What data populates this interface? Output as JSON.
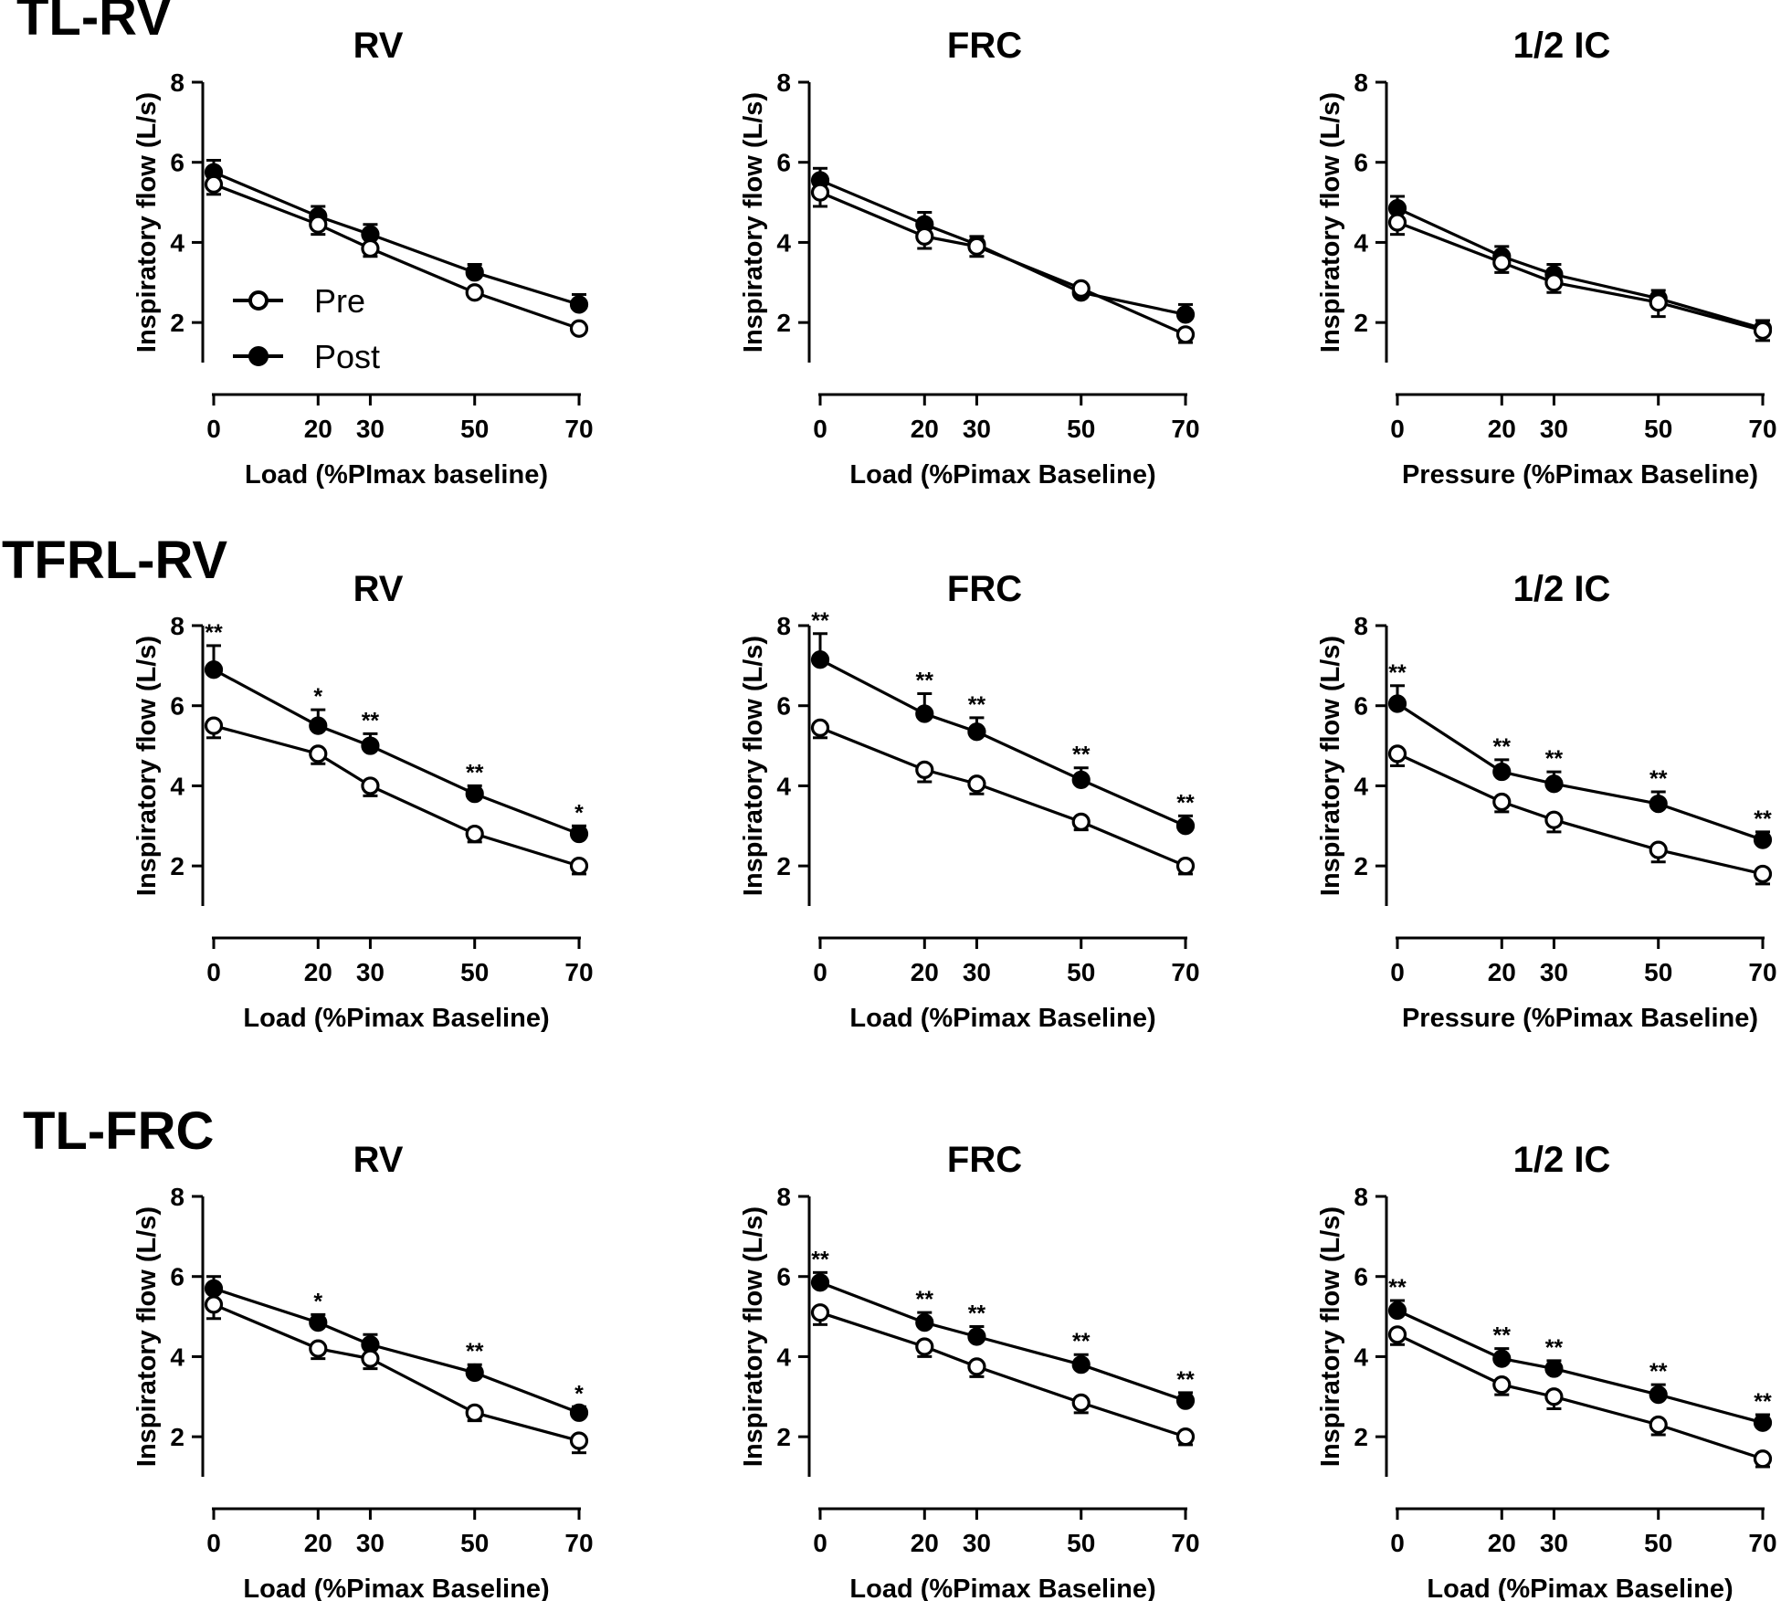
{
  "legend": {
    "pre_label": "Pre",
    "post_label": "Post"
  },
  "chart_data": [
    {
      "row_label": "TL-RV",
      "type": "line",
      "title": "RV",
      "xlabel": "Load (%PImax baseline)",
      "ylabel": "Inspiratory flow (L/s)",
      "x": [
        0,
        20,
        30,
        50,
        70
      ],
      "xticks": [
        "0",
        "20",
        "30",
        "50",
        "70"
      ],
      "ylim": [
        1,
        8
      ],
      "yticks": [
        "2",
        "4",
        "6",
        "8"
      ],
      "series": [
        {
          "name": "Pre",
          "values": [
            5.45,
            4.45,
            3.85,
            2.75,
            1.85
          ],
          "err": [
            0.25,
            0.25,
            0.2,
            0.1,
            0.1
          ]
        },
        {
          "name": "Post",
          "values": [
            5.75,
            4.65,
            4.2,
            3.25,
            2.45
          ],
          "err": [
            0.3,
            0.25,
            0.25,
            0.2,
            0.25
          ],
          "sig": [
            "",
            "",
            "",
            "",
            ""
          ]
        }
      ]
    },
    {
      "row_label": "",
      "type": "line",
      "title": "FRC",
      "xlabel": "Load (%Pimax Baseline)",
      "ylabel": "Inspiratory flow (L/s)",
      "x": [
        0,
        20,
        30,
        50,
        70
      ],
      "xticks": [
        "0",
        "20",
        "30",
        "50",
        "70"
      ],
      "ylim": [
        1,
        8
      ],
      "yticks": [
        "2",
        "4",
        "6",
        "8"
      ],
      "series": [
        {
          "name": "Pre",
          "values": [
            5.25,
            4.15,
            3.9,
            2.85,
            1.7
          ],
          "err": [
            0.35,
            0.3,
            0.25,
            0.15,
            0.2
          ]
        },
        {
          "name": "Post",
          "values": [
            5.55,
            4.45,
            3.95,
            2.75,
            2.2
          ],
          "err": [
            0.3,
            0.3,
            0.2,
            0.15,
            0.25
          ],
          "sig": [
            "",
            "",
            "",
            "",
            ""
          ]
        }
      ]
    },
    {
      "row_label": "",
      "type": "line",
      "title": "1/2 IC",
      "xlabel": "Pressure (%Pimax Baseline)",
      "ylabel": "Inspiratory flow (L/s)",
      "x": [
        0,
        20,
        30,
        50,
        70
      ],
      "xticks": [
        "0",
        "20",
        "30",
        "50",
        "70"
      ],
      "ylim": [
        1,
        8
      ],
      "yticks": [
        "2",
        "4",
        "6",
        "8"
      ],
      "series": [
        {
          "name": "Pre",
          "values": [
            4.5,
            3.5,
            3.0,
            2.5,
            1.8
          ],
          "err": [
            0.3,
            0.25,
            0.25,
            0.35,
            0.25
          ]
        },
        {
          "name": "Post",
          "values": [
            4.85,
            3.65,
            3.2,
            2.6,
            1.85
          ],
          "err": [
            0.3,
            0.25,
            0.25,
            0.2,
            0.2
          ],
          "sig": [
            "",
            "",
            "",
            "",
            ""
          ]
        }
      ]
    },
    {
      "row_label": "TFRL-RV",
      "type": "line",
      "title": "RV",
      "xlabel": "Load (%Pimax Baseline)",
      "ylabel": "Inspiratory flow (L/s)",
      "x": [
        0,
        20,
        30,
        50,
        70
      ],
      "xticks": [
        "0",
        "20",
        "30",
        "50",
        "70"
      ],
      "ylim": [
        1,
        8
      ],
      "yticks": [
        "2",
        "4",
        "6",
        "8"
      ],
      "series": [
        {
          "name": "Pre",
          "values": [
            5.5,
            4.8,
            4.0,
            2.8,
            2.0
          ],
          "err": [
            0.3,
            0.25,
            0.25,
            0.2,
            0.2
          ]
        },
        {
          "name": "Post",
          "values": [
            6.9,
            5.5,
            5.0,
            3.8,
            2.8
          ],
          "err": [
            0.6,
            0.4,
            0.3,
            0.2,
            0.2
          ],
          "sig": [
            "**",
            "*",
            "**",
            "**",
            "*"
          ]
        }
      ]
    },
    {
      "row_label": "",
      "type": "line",
      "title": "FRC",
      "xlabel": "Load (%Pimax Baseline)",
      "ylabel": "Inspiratory flow (L/s)",
      "x": [
        0,
        20,
        30,
        50,
        70
      ],
      "xticks": [
        "0",
        "20",
        "30",
        "50",
        "70"
      ],
      "ylim": [
        1,
        8
      ],
      "yticks": [
        "2",
        "4",
        "6",
        "8"
      ],
      "series": [
        {
          "name": "Pre",
          "values": [
            5.45,
            4.4,
            4.05,
            3.1,
            2.0
          ],
          "err": [
            0.25,
            0.3,
            0.25,
            0.2,
            0.2
          ]
        },
        {
          "name": "Post",
          "values": [
            7.15,
            5.8,
            5.35,
            4.15,
            3.0
          ],
          "err": [
            0.65,
            0.5,
            0.35,
            0.3,
            0.25
          ],
          "sig": [
            "**",
            "**",
            "**",
            "**",
            "**"
          ]
        }
      ]
    },
    {
      "row_label": "",
      "type": "line",
      "title": "1/2 IC",
      "xlabel": "Pressure (%Pimax Baseline)",
      "ylabel": "Inspiratory flow (L/s)",
      "x": [
        0,
        20,
        30,
        50,
        70
      ],
      "xticks": [
        "0",
        "20",
        "30",
        "50",
        "70"
      ],
      "ylim": [
        1,
        8
      ],
      "yticks": [
        "2",
        "4",
        "6",
        "8"
      ],
      "series": [
        {
          "name": "Pre",
          "values": [
            4.8,
            3.6,
            3.15,
            2.4,
            1.8
          ],
          "err": [
            0.3,
            0.25,
            0.3,
            0.3,
            0.25
          ]
        },
        {
          "name": "Post",
          "values": [
            6.05,
            4.35,
            4.05,
            3.55,
            2.65
          ],
          "err": [
            0.45,
            0.3,
            0.3,
            0.3,
            0.2
          ],
          "sig": [
            "**",
            "**",
            "**",
            "**",
            "**"
          ]
        }
      ]
    },
    {
      "row_label": "TL-FRC",
      "type": "line",
      "title": "RV",
      "xlabel": "Load (%Pimax Baseline)",
      "ylabel": "Inspiratory flow (L/s)",
      "x": [
        0,
        20,
        30,
        50,
        70
      ],
      "xticks": [
        "0",
        "20",
        "30",
        "50",
        "70"
      ],
      "ylim": [
        1,
        8
      ],
      "yticks": [
        "2",
        "4",
        "6",
        "8"
      ],
      "series": [
        {
          "name": "Pre",
          "values": [
            5.3,
            4.2,
            3.95,
            2.6,
            1.9
          ],
          "err": [
            0.35,
            0.25,
            0.25,
            0.2,
            0.3
          ]
        },
        {
          "name": "Post",
          "values": [
            5.7,
            4.85,
            4.3,
            3.6,
            2.6
          ],
          "err": [
            0.3,
            0.2,
            0.25,
            0.2,
            0.15
          ],
          "sig": [
            "",
            "*",
            "",
            "**",
            "*"
          ]
        }
      ]
    },
    {
      "row_label": "",
      "type": "line",
      "title": "FRC",
      "xlabel": "Load (%Pimax Baseline)",
      "ylabel": "Inspiratory flow (L/s)",
      "x": [
        0,
        20,
        30,
        50,
        70
      ],
      "xticks": [
        "0",
        "20",
        "30",
        "50",
        "70"
      ],
      "ylim": [
        1,
        8
      ],
      "yticks": [
        "2",
        "4",
        "6",
        "8"
      ],
      "series": [
        {
          "name": "Pre",
          "values": [
            5.1,
            4.25,
            3.75,
            2.85,
            2.0
          ],
          "err": [
            0.3,
            0.25,
            0.25,
            0.25,
            0.2
          ]
        },
        {
          "name": "Post",
          "values": [
            5.85,
            4.85,
            4.5,
            3.8,
            2.9
          ],
          "err": [
            0.25,
            0.25,
            0.25,
            0.25,
            0.2
          ],
          "sig": [
            "**",
            "**",
            "**",
            "**",
            "**"
          ]
        }
      ]
    },
    {
      "row_label": "",
      "type": "line",
      "title": "1/2 IC",
      "xlabel": "Load (%Pimax Baseline)",
      "ylabel": "Inspiratory flow (L/s)",
      "x": [
        0,
        20,
        30,
        50,
        70
      ],
      "xticks": [
        "0",
        "20",
        "30",
        "50",
        "70"
      ],
      "ylim": [
        1,
        8
      ],
      "yticks": [
        "2",
        "4",
        "6",
        "8"
      ],
      "series": [
        {
          "name": "Pre",
          "values": [
            4.55,
            3.3,
            3.0,
            2.3,
            1.45
          ],
          "err": [
            0.25,
            0.25,
            0.3,
            0.25,
            0.2
          ]
        },
        {
          "name": "Post",
          "values": [
            5.15,
            3.95,
            3.7,
            3.05,
            2.35
          ],
          "err": [
            0.25,
            0.25,
            0.2,
            0.25,
            0.2
          ],
          "sig": [
            "**",
            "**",
            "**",
            "**",
            "**"
          ]
        }
      ]
    }
  ]
}
